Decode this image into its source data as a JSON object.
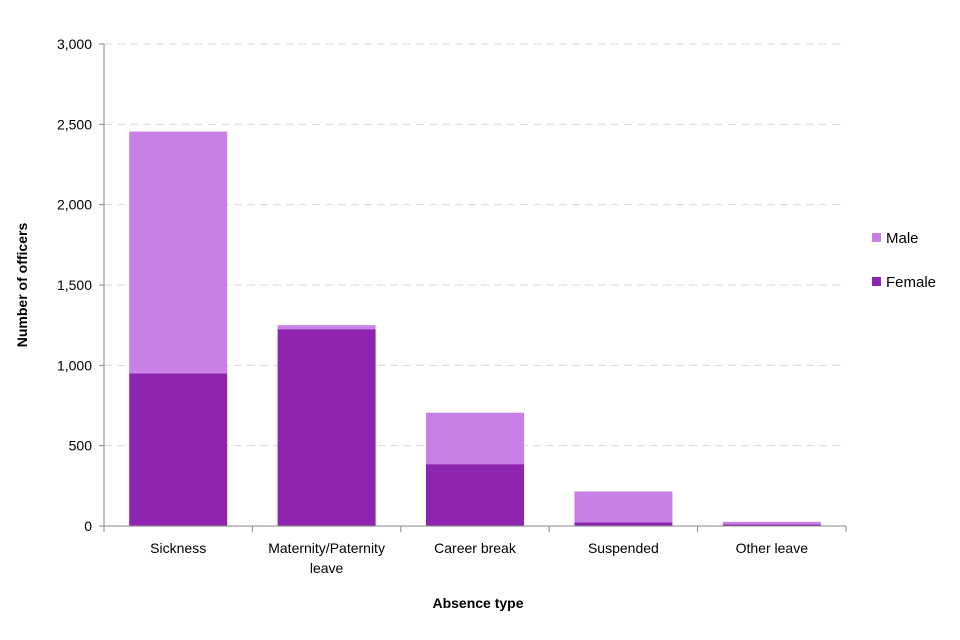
{
  "chart_data": {
    "type": "bar",
    "stacked": true,
    "title": "",
    "xlabel": "Absence type",
    "ylabel": "Number of officers",
    "ylim": [
      0,
      3000
    ],
    "yticks": [
      0,
      500,
      1000,
      1500,
      2000,
      2500,
      3000
    ],
    "ytick_labels": [
      "0",
      "500",
      "1,000",
      "1,500",
      "2,000",
      "2,500",
      "3,000"
    ],
    "grid": true,
    "legend_position": "right",
    "categories": [
      [
        "Sickness"
      ],
      [
        "Maternity/Paternity",
        "leave"
      ],
      [
        "Career break"
      ],
      [
        "Suspended"
      ],
      [
        "Other leave"
      ]
    ],
    "series": [
      {
        "name": "Female",
        "color": "#8e24b0",
        "values": [
          950,
          1225,
          385,
          22,
          10
        ]
      },
      {
        "name": "Male",
        "color": "#c87fe6",
        "values": [
          1505,
          25,
          320,
          193,
          16
        ]
      }
    ],
    "legend_order": [
      "Male",
      "Female"
    ]
  }
}
